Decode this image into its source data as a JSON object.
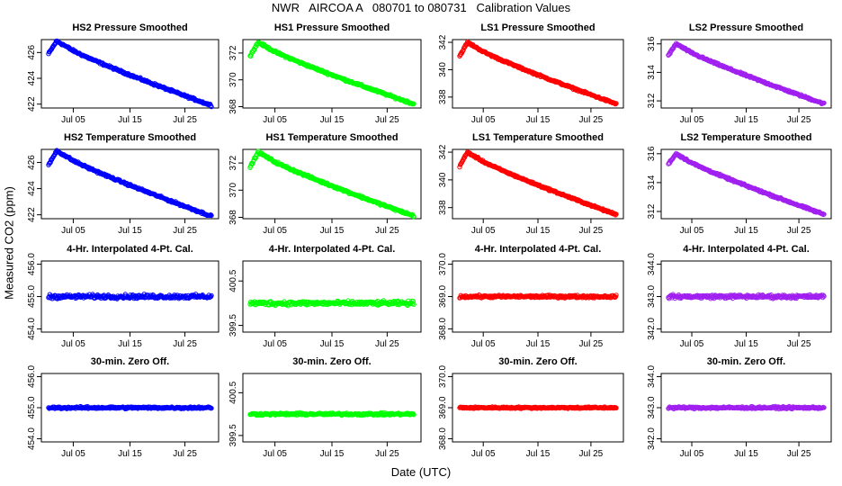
{
  "figure": {
    "title": "NWR   AIRCOA A   080701 to 080731   Calibration Values",
    "xlabel": "Date (UTC)",
    "ylabel": "Measured CO2 (ppm)"
  },
  "chart_data": [
    {
      "type": "scatter",
      "title": "HS2 Pressure Smoothed",
      "color": "#0000ff",
      "x_ticks": [
        "Jul 05",
        "Jul 15",
        "Jul 25"
      ],
      "ylim": [
        421.7,
        427.0
      ],
      "y_ticks": [
        "422",
        "424",
        "426"
      ],
      "shape": "drift",
      "start": 425.9,
      "peak": 426.9,
      "end": 421.9,
      "noise": 0.12
    },
    {
      "type": "scatter",
      "title": "HS1 Pressure Smoothed",
      "color": "#00ff00",
      "x_ticks": [
        "Jul 05",
        "Jul 15",
        "Jul 25"
      ],
      "ylim": [
        367.9,
        373.0
      ],
      "y_ticks": [
        "368",
        "370",
        "372"
      ],
      "shape": "drift",
      "start": 371.8,
      "peak": 372.8,
      "end": 368.2,
      "noise": 0.12
    },
    {
      "type": "scatter",
      "title": "LS1 Pressure Smoothed",
      "color": "#ff0000",
      "x_ticks": [
        "Jul 05",
        "Jul 15",
        "Jul 25"
      ],
      "ylim": [
        337.2,
        342.2
      ],
      "y_ticks": [
        "338",
        "340",
        "342"
      ],
      "shape": "drift",
      "start": 341.0,
      "peak": 342.0,
      "end": 337.5,
      "noise": 0.1
    },
    {
      "type": "scatter",
      "title": "LS2 Pressure Smoothed",
      "color": "#a020f0",
      "x_ticks": [
        "Jul 05",
        "Jul 15",
        "Jul 25"
      ],
      "ylim": [
        311.5,
        316.3
      ],
      "y_ticks": [
        "312",
        "314",
        "316"
      ],
      "shape": "drift",
      "start": 315.2,
      "peak": 316.0,
      "end": 311.8,
      "noise": 0.1
    },
    {
      "type": "scatter",
      "title": "HS2 Temperature Smoothed",
      "color": "#0000ff",
      "x_ticks": [
        "Jul 05",
        "Jul 15",
        "Jul 25"
      ],
      "ylim": [
        421.7,
        427.0
      ],
      "y_ticks": [
        "422",
        "424",
        "426"
      ],
      "shape": "drift",
      "start": 425.8,
      "peak": 426.9,
      "end": 421.9,
      "noise": 0.12
    },
    {
      "type": "scatter",
      "title": "HS1 Temperature Smoothed",
      "color": "#00ff00",
      "x_ticks": [
        "Jul 05",
        "Jul 15",
        "Jul 25"
      ],
      "ylim": [
        367.9,
        373.0
      ],
      "y_ticks": [
        "368",
        "370",
        "372"
      ],
      "shape": "drift",
      "start": 371.7,
      "peak": 372.8,
      "end": 368.1,
      "noise": 0.12
    },
    {
      "type": "scatter",
      "title": "LS1 Temperature Smoothed",
      "color": "#ff0000",
      "x_ticks": [
        "Jul 05",
        "Jul 15",
        "Jul 25"
      ],
      "ylim": [
        337.2,
        342.2
      ],
      "y_ticks": [
        "338",
        "340",
        "342"
      ],
      "shape": "drift",
      "start": 341.0,
      "peak": 342.0,
      "end": 337.5,
      "noise": 0.1
    },
    {
      "type": "scatter",
      "title": "LS2 Temperature Smoothed",
      "color": "#a020f0",
      "x_ticks": [
        "Jul 05",
        "Jul 15",
        "Jul 25"
      ],
      "ylim": [
        311.5,
        316.3
      ],
      "y_ticks": [
        "312",
        "314",
        "316"
      ],
      "shape": "drift",
      "start": 315.3,
      "peak": 316.0,
      "end": 311.8,
      "noise": 0.1
    },
    {
      "type": "scatter",
      "title": "4-Hr. Interpolated 4-Pt. Cal.",
      "color": "#0000ff",
      "x_ticks": [
        "Jul 05",
        "Jul 15",
        "Jul 25"
      ],
      "ylim": [
        453.9,
        456.1
      ],
      "y_ticks": [
        "454.0",
        "455.0",
        "456.0"
      ],
      "shape": "flat",
      "level": 455.0,
      "noise": 0.09
    },
    {
      "type": "scatter",
      "title": "4-Hr. Interpolated 4-Pt. Cal.",
      "color": "#00ff00",
      "x_ticks": [
        "Jul 05",
        "Jul 15",
        "Jul 25"
      ],
      "ylim": [
        399.35,
        400.95
      ],
      "y_ticks": [
        "399.5",
        "400.5"
      ],
      "shape": "flat",
      "level": 400.0,
      "noise": 0.07
    },
    {
      "type": "scatter",
      "title": "4-Hr. Interpolated 4-Pt. Cal.",
      "color": "#ff0000",
      "x_ticks": [
        "Jul 05",
        "Jul 15",
        "Jul 25"
      ],
      "ylim": [
        367.9,
        370.1
      ],
      "y_ticks": [
        "368.0",
        "369.0",
        "370.0"
      ],
      "shape": "flat",
      "level": 369.0,
      "noise": 0.06
    },
    {
      "type": "scatter",
      "title": "4-Hr. Interpolated 4-Pt. Cal.",
      "color": "#a020f0",
      "x_ticks": [
        "Jul 05",
        "Jul 15",
        "Jul 25"
      ],
      "ylim": [
        341.9,
        344.1
      ],
      "y_ticks": [
        "342.0",
        "343.0",
        "344.0"
      ],
      "shape": "flat",
      "level": 343.0,
      "noise": 0.08
    },
    {
      "type": "scatter",
      "title": "30-min. Zero Off.",
      "color": "#0000ff",
      "x_ticks": [
        "Jul 05",
        "Jul 15",
        "Jul 25"
      ],
      "ylim": [
        453.9,
        456.1
      ],
      "y_ticks": [
        "454.0",
        "455.0",
        "456.0"
      ],
      "shape": "flat",
      "level": 455.0,
      "noise": 0.05
    },
    {
      "type": "scatter",
      "title": "30-min. Zero Off.",
      "color": "#00ff00",
      "x_ticks": [
        "Jul 05",
        "Jul 15",
        "Jul 25"
      ],
      "ylim": [
        399.35,
        400.95
      ],
      "y_ticks": [
        "399.5",
        "400.5"
      ],
      "shape": "flat",
      "level": 400.0,
      "noise": 0.04
    },
    {
      "type": "scatter",
      "title": "30-min. Zero Off.",
      "color": "#ff0000",
      "x_ticks": [
        "Jul 05",
        "Jul 15",
        "Jul 25"
      ],
      "ylim": [
        367.9,
        370.1
      ],
      "y_ticks": [
        "368.0",
        "369.0",
        "370.0"
      ],
      "shape": "flat",
      "level": 369.0,
      "noise": 0.04
    },
    {
      "type": "scatter",
      "title": "30-min. Zero Off.",
      "color": "#a020f0",
      "x_ticks": [
        "Jul 05",
        "Jul 15",
        "Jul 25"
      ],
      "ylim": [
        341.9,
        344.1
      ],
      "y_ticks": [
        "342.0",
        "343.0",
        "344.0"
      ],
      "shape": "flat",
      "level": 343.0,
      "noise": 0.05
    }
  ]
}
